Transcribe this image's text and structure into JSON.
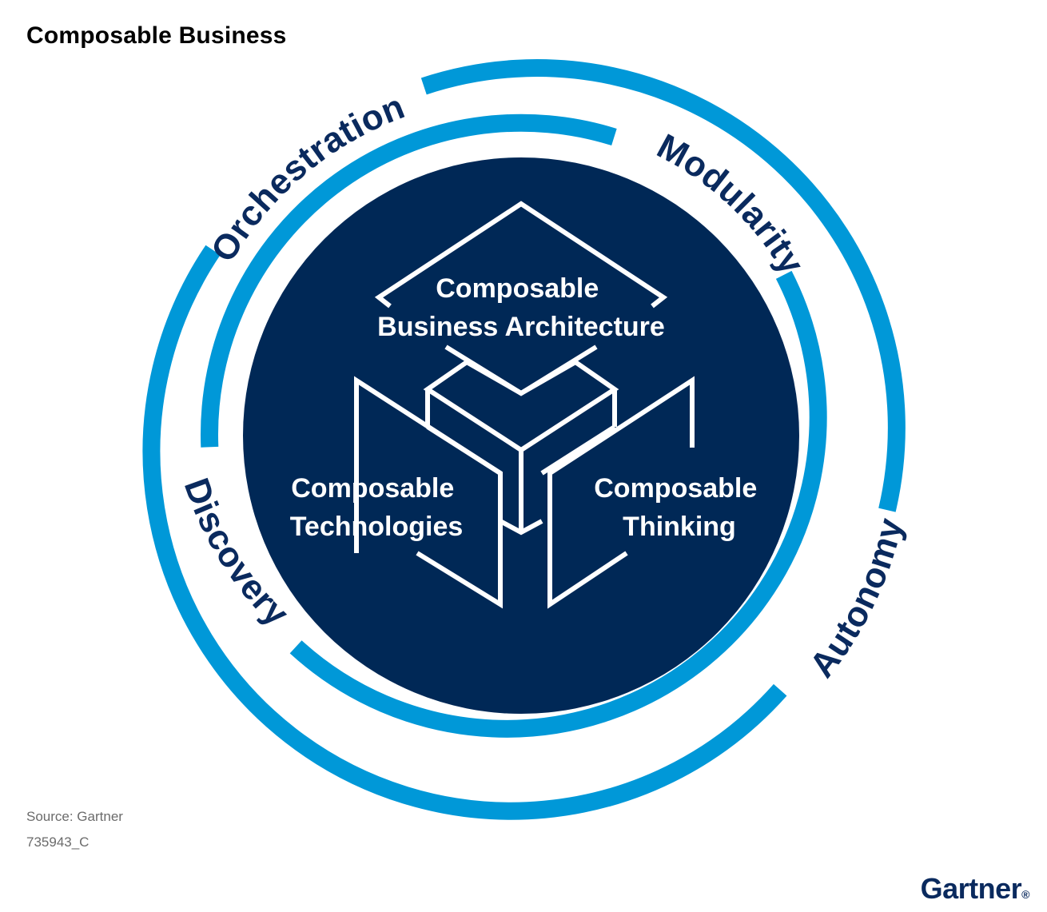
{
  "title": "Composable Business",
  "colors": {
    "outer_ring": "#0098d8",
    "inner_ring": "#0098d8",
    "core": "#002856",
    "ring_text": "#0a2a5e",
    "core_text": "#ffffff"
  },
  "outer_ring_labels": {
    "orchestration": "Orchestration",
    "modularity": "Modularity",
    "autonomy": "Autonomy",
    "discovery": "Discovery"
  },
  "core_labels": {
    "architecture_line1": "Composable",
    "architecture_line2": "Business Architecture",
    "technologies_line1": "Composable",
    "technologies_line2": "Technologies",
    "thinking_line1": "Composable",
    "thinking_line2": "Thinking"
  },
  "footer": {
    "source": "Source: Gartner",
    "code": "735943_C",
    "logo": "Gartner",
    "logo_mark": "®"
  }
}
